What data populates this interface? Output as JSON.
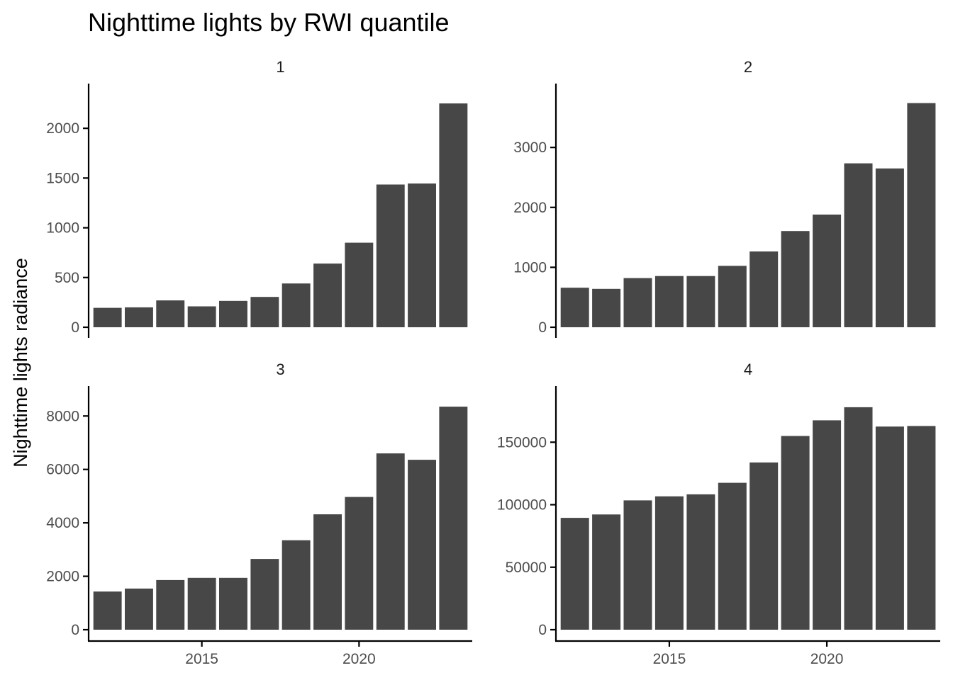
{
  "chart_data": {
    "type": "bar",
    "title": "Nighttime lights by RWI quantile",
    "ylabel": "Nighttime lights radiance",
    "xlabel": "",
    "bar_color": "#474747",
    "x_ticks": [
      2015,
      2020
    ],
    "facets": [
      {
        "strip": "1",
        "years": [
          2012,
          2013,
          2014,
          2015,
          2016,
          2017,
          2018,
          2019,
          2020,
          2021,
          2022,
          2023
        ],
        "values": [
          195,
          200,
          270,
          210,
          265,
          305,
          440,
          640,
          850,
          1435,
          1445,
          2250
        ],
        "ylim": [
          0,
          2350
        ],
        "y_ticks": [
          0,
          500,
          1000,
          1500,
          2000
        ]
      },
      {
        "strip": "2",
        "years": [
          2012,
          2013,
          2014,
          2015,
          2016,
          2017,
          2018,
          2019,
          2020,
          2021,
          2022,
          2023
        ],
        "values": [
          660,
          640,
          820,
          855,
          855,
          1025,
          1265,
          1605,
          1880,
          2735,
          2650,
          3740
        ],
        "ylim": [
          0,
          3900
        ],
        "y_ticks": [
          0,
          1000,
          2000,
          3000
        ]
      },
      {
        "strip": "3",
        "years": [
          2012,
          2013,
          2014,
          2015,
          2016,
          2017,
          2018,
          2019,
          2020,
          2021,
          2022,
          2023
        ],
        "values": [
          1430,
          1540,
          1860,
          1940,
          1940,
          2650,
          3350,
          4320,
          4970,
          6600,
          6360,
          8350
        ],
        "ylim": [
          0,
          8750
        ],
        "y_ticks": [
          0,
          2000,
          4000,
          6000,
          8000
        ]
      },
      {
        "strip": "4",
        "years": [
          2012,
          2013,
          2014,
          2015,
          2016,
          2017,
          2018,
          2019,
          2020,
          2021,
          2022,
          2023
        ],
        "values": [
          89500,
          92200,
          103500,
          106700,
          108300,
          117500,
          133800,
          155000,
          167500,
          178000,
          162500,
          163000
        ],
        "ylim": [
          0,
          187000
        ],
        "y_ticks": [
          0,
          50000,
          100000,
          150000
        ]
      }
    ]
  }
}
